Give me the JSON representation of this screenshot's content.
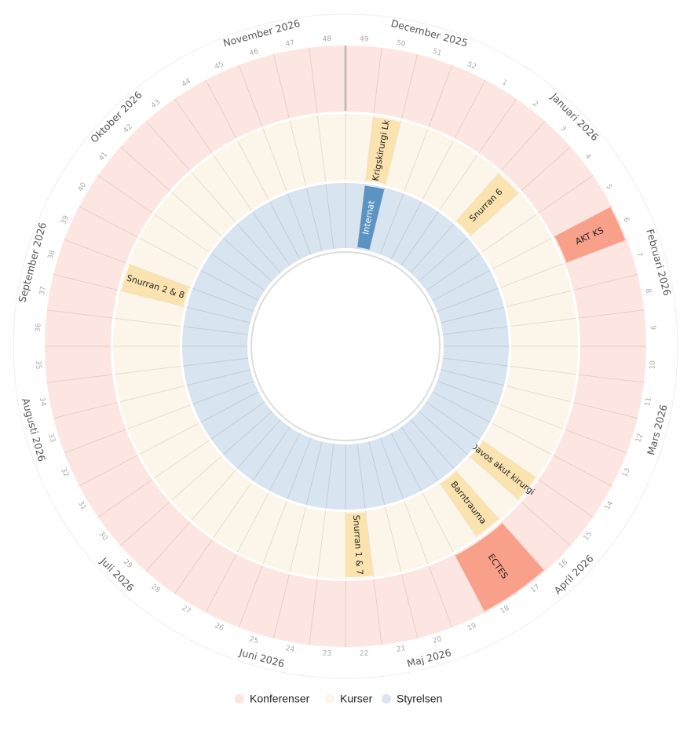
{
  "weeks": [
    "49",
    "50",
    "51",
    "52",
    "1",
    "2",
    "3",
    "4",
    "5",
    "6",
    "7",
    "8",
    "9",
    "10",
    "11",
    "12",
    "13",
    "14",
    "15",
    "16",
    "17",
    "18",
    "19",
    "20",
    "21",
    "22",
    "23",
    "24",
    "25",
    "26",
    "27",
    "28",
    "29",
    "30",
    "31",
    "32",
    "33",
    "34",
    "35",
    "36",
    "37",
    "38",
    "39",
    "40",
    "41",
    "42",
    "43",
    "44",
    "45",
    "46",
    "47",
    "48"
  ],
  "months": [
    "December 2025",
    "Januari 2026",
    "Februari 2026",
    "Mars 2026",
    "April 2026",
    "Maj 2026",
    "Juni 2026",
    "Juli 2026",
    "Augusti 2026",
    "September 2026",
    "Oktober 2026",
    "November 2026"
  ],
  "rings": [
    {
      "name": "Konferenser",
      "color": "#fde6e1",
      "event_color": "#f9a08a",
      "events": [
        {
          "label": "AKT KS",
          "weeks": [
            "6"
          ]
        },
        {
          "label": "ECTES",
          "weeks": [
            "17",
            "18"
          ]
        }
      ]
    },
    {
      "name": "Kurser",
      "color": "#fcf6ea",
      "event_color": "#fbe3b0",
      "events": [
        {
          "label": "Krigskirurgi Lk",
          "weeks": [
            "50"
          ]
        },
        {
          "label": "Snurran 6",
          "weeks": [
            "3"
          ]
        },
        {
          "label": "Davos akut kirurgi",
          "weeks": [
            "15"
          ]
        },
        {
          "label": "Barntrauma",
          "weeks": [
            "17"
          ]
        },
        {
          "label": "Snurran 1 & 7",
          "weeks": [
            "22"
          ]
        },
        {
          "label": "Snurran 2 & 8",
          "weeks": [
            "38"
          ]
        }
      ]
    },
    {
      "name": "Styrelsen",
      "color": "#d8e4ef",
      "event_color": "#5b93c3",
      "events": [
        {
          "label": "Internat",
          "weeks": [
            "50"
          ]
        }
      ]
    }
  ]
}
